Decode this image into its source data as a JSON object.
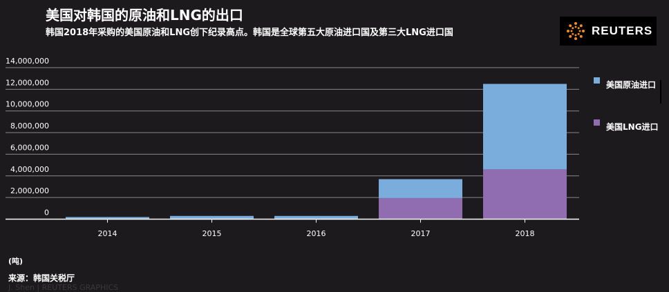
{
  "header": {
    "title": "美国对韩国的原油和LNG的出口",
    "subtitle": "韩国2018年采购的美国原油和LNG创下纪录高点。韩国是全球第五大原油进口国及第三大LNG进口国"
  },
  "logo": {
    "text": "REUTERS",
    "icon": "reuters-dot-logo-icon"
  },
  "legend": [
    {
      "label": "美国原油进口",
      "color": "#7aacdc"
    },
    {
      "label": "美国LNG进口",
      "color": "#8f6db0"
    }
  ],
  "footer": {
    "unit": "(吨)",
    "source": "来源：韩国关税厅",
    "credit": "J. Shen | REUTERS GRAPHICS"
  },
  "chart_data": {
    "type": "bar",
    "stacked": true,
    "categories": [
      "2014",
      "2015",
      "2016",
      "2017",
      "2018"
    ],
    "series": [
      {
        "name": "美国LNG进口",
        "color": "#8f6db0",
        "values": [
          0,
          0,
          0,
          1950000,
          4600000
        ]
      },
      {
        "name": "美国原油进口",
        "color": "#7aacdc",
        "values": [
          200000,
          300000,
          300000,
          1750000,
          7900000
        ]
      }
    ],
    "yticks": [
      0,
      2000000,
      4000000,
      6000000,
      8000000,
      10000000,
      12000000,
      14000000
    ],
    "ytick_labels": [
      "0",
      "2,000,000",
      "4,000,000",
      "6,000,000",
      "8,000,000",
      "10,000,000",
      "12,000,000",
      "14,000,000"
    ],
    "ylim": [
      0,
      14000000
    ],
    "grid": true,
    "legend_position": "right"
  }
}
